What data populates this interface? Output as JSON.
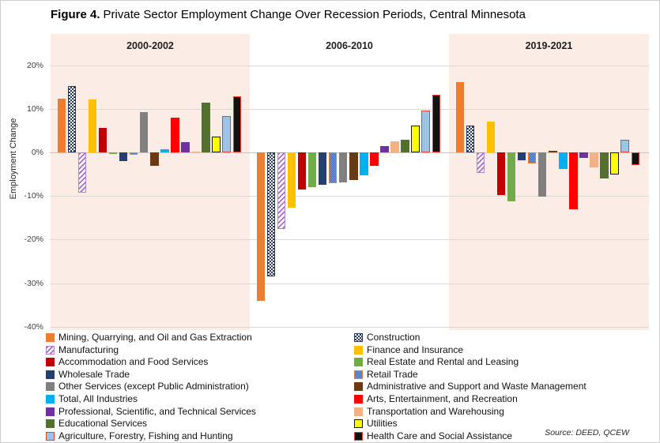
{
  "figure": {
    "title_prefix": "Figure 4.",
    "title_rest": "Private Sector Employment Change Over Recession Periods, Central Minnesota",
    "source": "Source: DEED, QCEW"
  },
  "chart_data": {
    "type": "bar",
    "title": "Figure 4. Private Sector Employment Change Over Recession Periods, Central Minnesota",
    "ylabel": "Employment Change",
    "ylim": [
      -40,
      20
    ],
    "ytick_step": 10,
    "ytick_labels": [
      "20%",
      "10%",
      "0%",
      "-10%",
      "-20%",
      "-30%",
      "-40%"
    ],
    "grid": "horizontal",
    "legend_position": "bottom-two-columns",
    "panels": [
      "2000-2002",
      "2006-2010",
      "2019-2021"
    ],
    "panel_bg_colors": [
      "#fbede5",
      "#ffffff",
      "#fbede5"
    ],
    "series": [
      {
        "name": "Mining, Quarrying, and Oil and Gas Extraction",
        "key": "mining",
        "fill": "#ED7D31",
        "pattern": "solid",
        "values": [
          12.4,
          -34.0,
          16.1
        ]
      },
      {
        "name": "Construction",
        "key": "construction",
        "fill": "#24385E",
        "fill2": "#FFFFFF",
        "border": "#24385E",
        "pattern": "checker",
        "values": [
          15.3,
          -28.5,
          6.1
        ]
      },
      {
        "name": "Manufacturing",
        "key": "manufacturing",
        "fill": "#A96BC9",
        "fill2": "#FFFFFF",
        "border": "#B584CE",
        "pattern": "hatch",
        "values": [
          -9.3,
          -17.6,
          -4.8
        ]
      },
      {
        "name": "Finance and Insurance",
        "key": "finance",
        "fill": "#FFC000",
        "pattern": "solid",
        "values": [
          12.2,
          -12.7,
          7.0
        ]
      },
      {
        "name": "Accommodation and Food Services",
        "key": "accommodation",
        "fill": "#C00000",
        "pattern": "solid",
        "values": [
          5.7,
          -8.6,
          -9.8
        ]
      },
      {
        "name": "Real Estate and Rental and Leasing",
        "key": "realestate",
        "fill": "#70AD47",
        "pattern": "solid",
        "values": [
          -0.4,
          -8.0,
          -11.2
        ]
      },
      {
        "name": "Wholesale Trade",
        "key": "wholesale",
        "fill": "#24406E",
        "pattern": "solid",
        "values": [
          -2.0,
          -7.4,
          -1.9
        ]
      },
      {
        "name": "Retail Trade",
        "key": "retail",
        "fill": "#4472C4",
        "fill2": "#6E96D8",
        "border": "#ED7D31",
        "pattern": "checker",
        "values": [
          -0.5,
          -7.1,
          -2.5
        ]
      },
      {
        "name": "Other Services (except Public Administration)",
        "key": "otherservices",
        "fill": "#808080",
        "pattern": "solid",
        "values": [
          9.2,
          -6.8,
          -10.2
        ]
      },
      {
        "name": "Administrative and Support and Waste Management",
        "key": "admin",
        "fill": "#6B3A12",
        "pattern": "solid",
        "values": [
          -3.0,
          -6.4,
          0.4
        ]
      },
      {
        "name": "Total, All Industries",
        "key": "total",
        "fill": "#00B0F0",
        "pattern": "solid",
        "values": [
          0.8,
          -5.2,
          -3.8
        ]
      },
      {
        "name": "Arts, Entertainment, and Recreation",
        "key": "arts",
        "fill": "#FF0000",
        "pattern": "solid",
        "values": [
          7.9,
          -3.1,
          -13.0
        ]
      },
      {
        "name": "Professional, Scientific, and Technical Services",
        "key": "professional",
        "fill": "#7030A0",
        "pattern": "solid",
        "values": [
          2.3,
          1.5,
          -1.2
        ]
      },
      {
        "name": "Transportation and Warehousing",
        "key": "transportation",
        "fill": "#F4B183",
        "pattern": "solid",
        "values": [
          0.1,
          2.5,
          -3.4
        ]
      },
      {
        "name": "Educational Services",
        "key": "educational",
        "fill": "#54702F",
        "pattern": "solid",
        "values": [
          11.5,
          2.9,
          -6.0
        ]
      },
      {
        "name": "Utilities",
        "key": "utilities",
        "fill": "#FFFF00",
        "border": "#1A1A1A",
        "pattern": "solid",
        "values": [
          3.6,
          6.1,
          -5.0
        ]
      },
      {
        "name": "Agriculture, Forestry, Fishing and Hunting",
        "key": "agriculture",
        "fill": "#9DC3E6",
        "border": "#EE3B33",
        "pattern": "solid",
        "values": [
          8.4,
          9.6,
          2.9
        ]
      },
      {
        "name": "Health Care and Social Assistance",
        "key": "healthcare",
        "fill": "#121212",
        "border": "#EE3B33",
        "pattern": "solid",
        "values": [
          12.9,
          13.3,
          -2.9
        ]
      }
    ]
  }
}
